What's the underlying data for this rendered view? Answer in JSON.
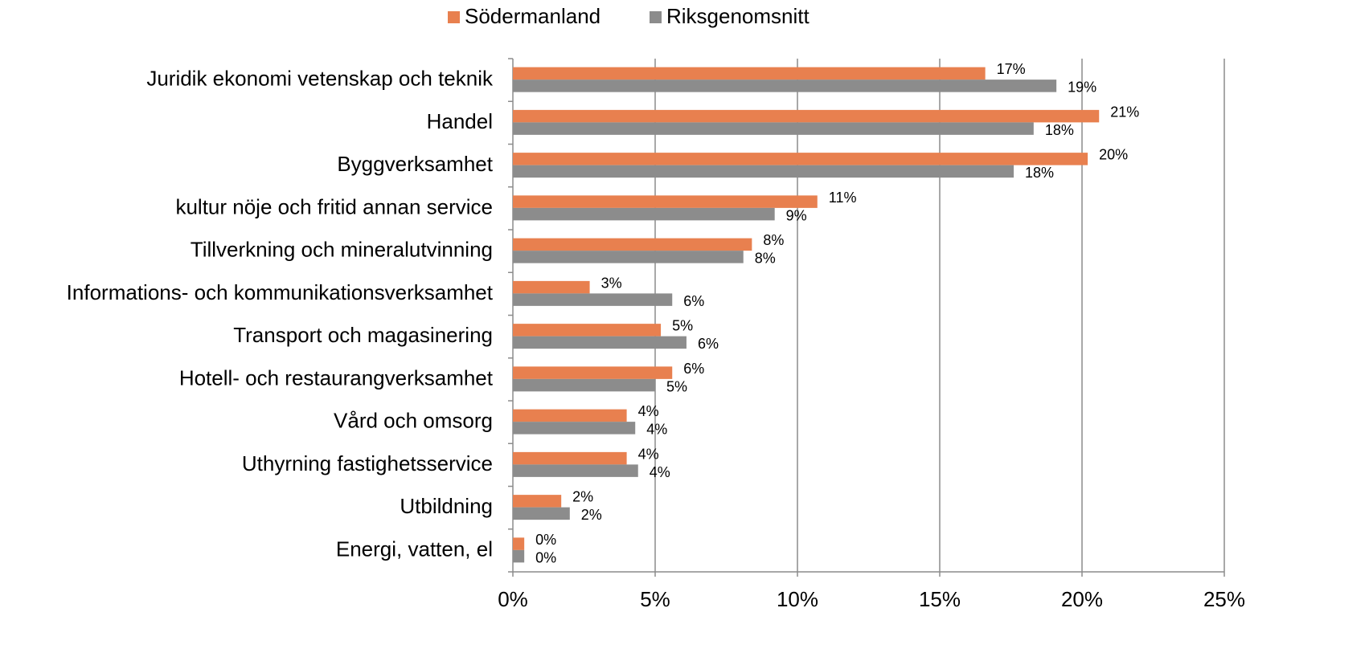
{
  "chart_data": {
    "type": "hbar",
    "categories": [
      "Juridik  ekonomi  vetenskap och teknik",
      "Handel",
      "Byggverksamhet",
      "kultur  nöje och fritid  annan service",
      "Tillverkning och mineralutvinning",
      "Informations- och kommunikationsverksamhet",
      "Transport och magasinering",
      "Hotell- och restaurangverksamhet",
      "Vård och omsorg",
      "Uthyrning  fastighetsservice",
      "Utbildning",
      "Energi, vatten, el"
    ],
    "series": [
      {
        "name": "Södermanland",
        "color": "#e8804f",
        "values": [
          16.6,
          20.6,
          20.2,
          10.7,
          8.4,
          2.7,
          5.2,
          5.6,
          4.0,
          4.0,
          1.7,
          0.4
        ],
        "value_labels": [
          "17%",
          "21%",
          "20%",
          "11%",
          "8%",
          "3%",
          "5%",
          "6%",
          "4%",
          "4%",
          "2%",
          "0%"
        ]
      },
      {
        "name": "Riksgenomsnitt",
        "color": "#8c8c8c",
        "values": [
          19.1,
          18.3,
          17.6,
          9.2,
          8.1,
          5.6,
          6.1,
          5.0,
          4.3,
          4.4,
          2.0,
          0.4
        ],
        "value_labels": [
          "19%",
          "18%",
          "18%",
          "9%",
          "8%",
          "6%",
          "6%",
          "5%",
          "4%",
          "4%",
          "2%",
          "0%"
        ]
      }
    ],
    "xlim": [
      0,
      25
    ],
    "xticks": [
      {
        "value": 0,
        "label": "0%"
      },
      {
        "value": 5,
        "label": "5%"
      },
      {
        "value": 10,
        "label": "10%"
      },
      {
        "value": 15,
        "label": "15%"
      },
      {
        "value": 20,
        "label": "20%"
      },
      {
        "value": 25,
        "label": "25%"
      }
    ],
    "grid": true,
    "legend": "top"
  }
}
